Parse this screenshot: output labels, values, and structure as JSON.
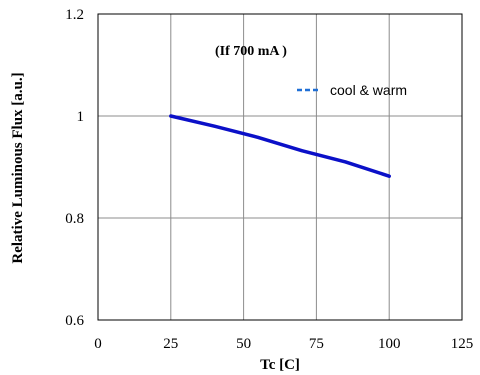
{
  "chart_data": {
    "type": "line",
    "title": "",
    "annotation": "(If   700 mA )",
    "xlabel": "Tc [C]",
    "ylabel": "Relative  Luminous  Flux [a.u.]",
    "xlim": [
      0,
      125
    ],
    "ylim": [
      0.6,
      1.2
    ],
    "xticks": [
      "0",
      "25",
      "50",
      "75",
      "100",
      "125"
    ],
    "yticks": [
      "0.6",
      "0.8",
      "1",
      "1.2"
    ],
    "grid": true,
    "legend_position": "top-right",
    "series": [
      {
        "name": "cool & warm",
        "color": "#0b10c8",
        "legend_color": "#1f6fd6",
        "x": [
          25,
          40,
          55,
          70,
          85,
          100
        ],
        "y": [
          1.0,
          0.98,
          0.958,
          0.932,
          0.91,
          0.882
        ]
      }
    ]
  }
}
